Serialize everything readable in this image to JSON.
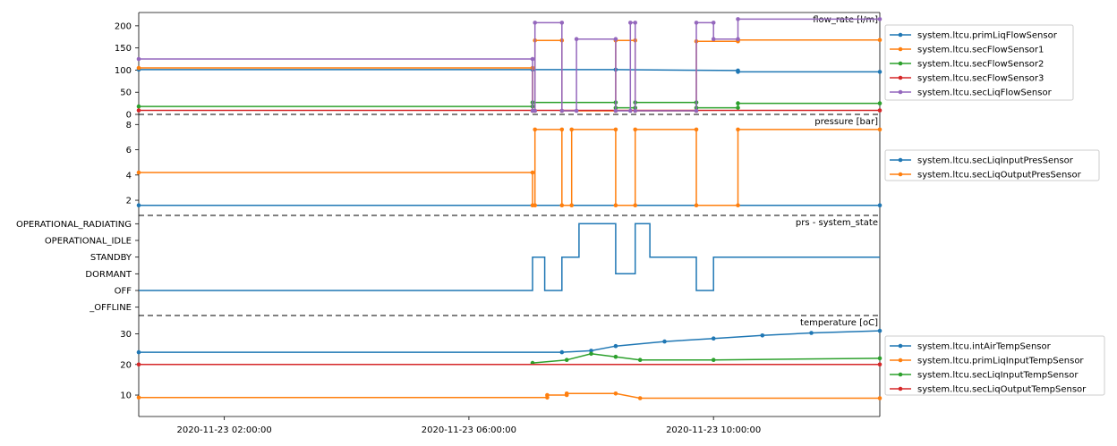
{
  "chart_data": [
    {
      "type": "line",
      "title": "flow_rate [l/m]",
      "ylim": [
        0,
        230
      ],
      "yticks": [
        0,
        50,
        100,
        150,
        200
      ],
      "ytick_labels": [
        "0",
        "50",
        "100",
        "150",
        "200"
      ],
      "legend_position": "right",
      "series": [
        {
          "name": "system.ltcu.primLiqFlowSensor",
          "color": "#1f77b4",
          "x": [
            0.25,
            8.3,
            10.0,
            12.5,
            12.5,
            15.4
          ],
          "y": [
            101,
            101,
            101,
            99,
            96,
            96
          ]
        },
        {
          "name": "system.ltcu.secFlowSensor1",
          "color": "#ff7f0e",
          "x": [
            0.25,
            8.3,
            8.3,
            8.35,
            8.35,
            8.9,
            8.9,
            10.0,
            10.0,
            10.4,
            10.4,
            11.65,
            11.65,
            12.5,
            12.5,
            15.4
          ],
          "y": [
            105,
            105,
            8,
            8,
            167,
            167,
            8,
            8,
            167,
            167,
            8,
            8,
            165,
            165,
            168,
            168
          ]
        },
        {
          "name": "system.ltcu.secFlowSensor2",
          "color": "#2ca02c",
          "x": [
            0.25,
            8.3,
            8.3,
            10.0,
            10.0,
            10.4,
            10.4,
            11.65,
            11.65,
            12.5,
            12.5,
            15.4
          ],
          "y": [
            18,
            18,
            27,
            27,
            15,
            15,
            27,
            27,
            15,
            15,
            25,
            25
          ]
        },
        {
          "name": "system.ltcu.secFlowSensor3",
          "color": "#d62728",
          "x": [
            0.25,
            15.4
          ],
          "y": [
            9,
            9
          ]
        },
        {
          "name": "system.ltcu.secLiqFlowSensor",
          "color": "#9467bd",
          "x": [
            0.25,
            8.3,
            8.3,
            8.35,
            8.35,
            8.9,
            8.9,
            9.2,
            9.2,
            10.0,
            10.0,
            10.3,
            10.3,
            10.4,
            10.4,
            11.65,
            11.65,
            12.0,
            12.0,
            12.5,
            12.5,
            15.4
          ],
          "y": [
            125,
            125,
            8,
            8,
            207,
            207,
            8,
            8,
            170,
            170,
            8,
            8,
            207,
            207,
            8,
            8,
            207,
            207,
            170,
            170,
            215,
            215
          ]
        }
      ]
    },
    {
      "type": "line",
      "title": "pressure [bar]",
      "ylim": [
        0.8,
        8.8
      ],
      "yticks": [
        2,
        4,
        6,
        8
      ],
      "ytick_labels": [
        "2",
        "4",
        "6",
        "8"
      ],
      "legend_position": "right",
      "series": [
        {
          "name": "system.ltcu.secLiqInputPresSensor",
          "color": "#1f77b4",
          "x": [
            0.25,
            15.4
          ],
          "y": [
            1.6,
            1.6
          ]
        },
        {
          "name": "system.ltcu.secLiqOutputPresSensor",
          "color": "#ff7f0e",
          "x": [
            0.25,
            8.3,
            8.3,
            8.35,
            8.35,
            8.9,
            8.9,
            9.1,
            9.1,
            10.0,
            10.0,
            10.4,
            10.4,
            11.65,
            11.65,
            12.5,
            12.5,
            15.4
          ],
          "y": [
            4.2,
            4.2,
            1.6,
            1.6,
            7.6,
            7.6,
            1.6,
            1.6,
            7.6,
            7.6,
            1.6,
            1.6,
            7.6,
            7.6,
            1.6,
            1.6,
            7.6,
            7.6
          ]
        }
      ]
    },
    {
      "type": "line",
      "title": "prs - system_state",
      "ylim": [
        -0.5,
        5.5
      ],
      "yticks": [
        0,
        1,
        2,
        3,
        4,
        5
      ],
      "ytick_labels": [
        "_OFFLINE",
        "OFF",
        "DORMANT",
        "STANDBY",
        "OPERATIONAL_IDLE",
        "OPERATIONAL_RADIATING"
      ],
      "legend_position": "none",
      "series": [
        {
          "name": "",
          "color": "#1f77b4",
          "x": [
            0.25,
            8.3,
            8.3,
            8.55,
            8.55,
            8.9,
            8.9,
            9.25,
            9.25,
            10.0,
            10.0,
            10.4,
            10.4,
            10.7,
            10.7,
            11.65,
            11.65,
            12.0,
            12.0,
            12.5,
            12.5,
            15.4
          ],
          "y": [
            1,
            1,
            3,
            3,
            1,
            1,
            3,
            3,
            5,
            5,
            2,
            2,
            5,
            5,
            3,
            3,
            1,
            1,
            3,
            3,
            3,
            3
          ]
        }
      ]
    },
    {
      "type": "scatter",
      "title": "temperature [oC]",
      "ylim": [
        3,
        36
      ],
      "yticks": [
        10,
        20,
        30
      ],
      "ytick_labels": [
        "10",
        "20",
        "30"
      ],
      "legend_position": "right",
      "series": [
        {
          "name": "system.ltcu.intAirTempSensor",
          "color": "#1f77b4",
          "x": [
            0.25,
            8.9,
            9.5,
            10.0,
            11.0,
            12.0,
            13.0,
            14.0,
            15.4
          ],
          "y": [
            24,
            24,
            24.5,
            26,
            27.5,
            28.5,
            29.5,
            30.3,
            31
          ]
        },
        {
          "name": "system.ltcu.primLiqInputTempSensor",
          "color": "#ff7f0e",
          "x": [
            0.25,
            8.6,
            8.6,
            9.0,
            9.0,
            10.0,
            10.5,
            15.4
          ],
          "y": [
            9.2,
            9.2,
            10,
            10,
            10.5,
            10.5,
            9,
            9
          ]
        },
        {
          "name": "system.ltcu.secLiqInputTempSensor",
          "color": "#2ca02c",
          "x": [
            8.3,
            9.0,
            9.5,
            10.0,
            10.5,
            12.0,
            15.4
          ],
          "y": [
            20.5,
            21.5,
            23.5,
            22.5,
            21.5,
            21.5,
            22
          ]
        },
        {
          "name": "system.ltcu.secLiqOutputTempSensor",
          "color": "#d62728",
          "x": [
            0.25,
            15.4
          ],
          "y": [
            20,
            20
          ]
        }
      ]
    }
  ],
  "x_axis": {
    "range": [
      0.25,
      15.4
    ],
    "ticks": [
      2,
      7,
      12
    ],
    "tick_labels": [
      "2020-11-23 02:00:00",
      "2020-11-23 06:00:00",
      "2020-11-23 10:00:00"
    ]
  }
}
